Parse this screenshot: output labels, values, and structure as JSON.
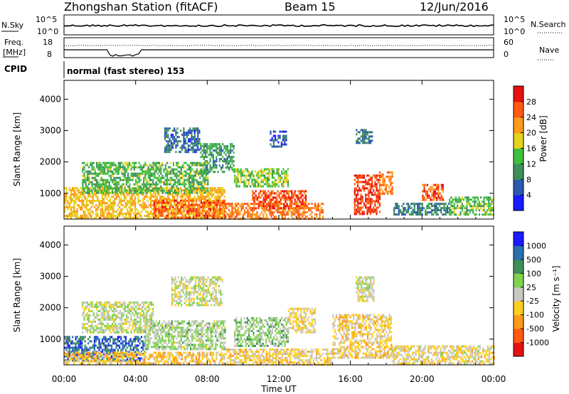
{
  "header": {
    "station": "Zhongshan Station (fitACF)",
    "beam": "Beam 15",
    "date": "12/Jun/2016"
  },
  "nsky_panel": {
    "left_label": "N.Sky",
    "right_label": "N.Search",
    "left_ticks": [
      "10^5",
      "10^0"
    ],
    "right_ticks": [
      "10^5",
      "10^0"
    ]
  },
  "freq_panel": {
    "left_label_1": "Freq.",
    "left_label_2": "[MHz]",
    "right_label": "Nave",
    "left_ticks": [
      "18",
      "8"
    ],
    "right_ticks": [
      "60",
      "0"
    ]
  },
  "cpid": {
    "label": "CPID",
    "value": "normal (fast stereo) 153"
  },
  "colors": {
    "power_scale": [
      "#1a1aff",
      "#2a59b0",
      "#3f8f5a",
      "#3fbf3f",
      "#e6d21f",
      "#ff9a1a",
      "#ff5a10",
      "#e81010"
    ],
    "velocity_scale": [
      "#e81010",
      "#ff5a10",
      "#ff9a1a",
      "#ffcf1f",
      "#c8c8c0",
      "#7fd34f",
      "#3f8f5a",
      "#2a6fb0",
      "#1a1aff"
    ]
  },
  "chart_data": [
    {
      "type": "heatmap",
      "title": "",
      "xlabel": "",
      "ylabel": "Slant Range [km]",
      "colorbar_label": "Power [dB]",
      "colorbar_ticks": [
        "4",
        "8",
        "12",
        "16",
        "20",
        "24",
        "28"
      ],
      "ylim": [
        180,
        4600
      ],
      "yticks": [
        "1000",
        "2000",
        "3000",
        "4000"
      ],
      "xlim_hours": [
        0,
        24
      ],
      "xtick_labels": [
        "00:00",
        "04:00",
        "08:00",
        "12:00",
        "16:00",
        "20:00",
        "00:00"
      ],
      "blobs": [
        {
          "t0": 0.0,
          "t1": 9.0,
          "r0": 200,
          "r1": 1200,
          "v": 20
        },
        {
          "t0": 5.0,
          "t1": 9.0,
          "r0": 200,
          "r1": 800,
          "v": 26
        },
        {
          "t0": 9.0,
          "t1": 14.5,
          "r0": 200,
          "r1": 700,
          "v": 24
        },
        {
          "t0": 10.5,
          "t1": 13.5,
          "r0": 500,
          "r1": 1100,
          "v": 27
        },
        {
          "t0": 16.2,
          "t1": 17.6,
          "r0": 350,
          "r1": 1600,
          "v": 28
        },
        {
          "t0": 17.6,
          "t1": 18.3,
          "r0": 1000,
          "r1": 1700,
          "v": 24
        },
        {
          "t0": 20.0,
          "t1": 21.2,
          "r0": 800,
          "r1": 1300,
          "v": 26
        },
        {
          "t0": 5.6,
          "t1": 7.6,
          "r0": 2300,
          "r1": 3100,
          "v": 7
        },
        {
          "t0": 7.6,
          "t1": 9.5,
          "r0": 1700,
          "r1": 2600,
          "v": 11
        },
        {
          "t0": 11.5,
          "t1": 12.4,
          "r0": 2500,
          "r1": 3000,
          "v": 6
        },
        {
          "t0": 16.3,
          "t1": 17.2,
          "r0": 2600,
          "r1": 3050,
          "v": 8
        },
        {
          "t0": 1.0,
          "t1": 8.0,
          "r0": 1000,
          "r1": 2000,
          "v": 13
        },
        {
          "t0": 9.5,
          "t1": 12.5,
          "r0": 1200,
          "r1": 1800,
          "v": 15
        },
        {
          "t0": 18.4,
          "t1": 21.5,
          "r0": 300,
          "r1": 700,
          "v": 9
        },
        {
          "t0": 21.5,
          "t1": 24.0,
          "r0": 300,
          "r1": 900,
          "v": 14
        }
      ]
    },
    {
      "type": "heatmap",
      "title": "",
      "xlabel": "Time UT",
      "ylabel": "Slant Range [km]",
      "colorbar_label": "Velocity [m s⁻¹]",
      "colorbar_ticks": [
        "-1000",
        "-500",
        "-100",
        "-25",
        "25",
        "100",
        "500",
        "1000"
      ],
      "ylim": [
        180,
        4600
      ],
      "yticks": [
        "1000",
        "2000",
        "3000",
        "4000"
      ],
      "xlim_hours": [
        0,
        24
      ],
      "xtick_labels": [
        "00:00",
        "04:00",
        "08:00",
        "12:00",
        "16:00",
        "20:00",
        "00:00"
      ],
      "blobs": [
        {
          "t0": 0.0,
          "t1": 4.5,
          "r0": 300,
          "r1": 1100,
          "v": 800
        },
        {
          "t0": 0.0,
          "t1": 9.0,
          "r0": 200,
          "r1": 600,
          "v": -300
        },
        {
          "t0": 4.5,
          "t1": 9.0,
          "r0": 700,
          "r1": 1600,
          "v": 150
        },
        {
          "t0": 6.0,
          "t1": 8.8,
          "r0": 2100,
          "r1": 3000,
          "v": 0
        },
        {
          "t0": 9.0,
          "t1": 15.0,
          "r0": 200,
          "r1": 700,
          "v": -200
        },
        {
          "t0": 9.5,
          "t1": 12.5,
          "r0": 800,
          "r1": 1700,
          "v": 200
        },
        {
          "t0": 12.5,
          "t1": 14.0,
          "r0": 1200,
          "r1": 2000,
          "v": -150
        },
        {
          "t0": 15.0,
          "t1": 18.3,
          "r0": 400,
          "r1": 1800,
          "v": -200
        },
        {
          "t0": 16.3,
          "t1": 17.3,
          "r0": 2200,
          "r1": 3000,
          "v": 0
        },
        {
          "t0": 18.3,
          "t1": 24.0,
          "r0": 200,
          "r1": 800,
          "v": -150
        },
        {
          "t0": 1.0,
          "t1": 5.0,
          "r0": 1200,
          "r1": 2200,
          "v": 50
        }
      ]
    }
  ]
}
